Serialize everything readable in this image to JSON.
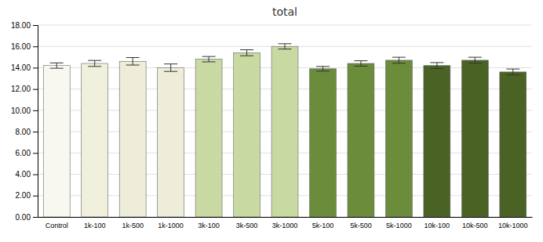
{
  "chart_data": {
    "type": "bar",
    "title": "total",
    "categories": [
      "Control",
      "1k-100",
      "1k-500",
      "1k-1000",
      "3k-100",
      "3k-500",
      "3k-1000",
      "5k-100",
      "5k-500",
      "5k-1000",
      "10k-100",
      "10k-500",
      "10k-1000"
    ],
    "values": [
      14.2,
      14.4,
      14.6,
      14.0,
      14.8,
      15.4,
      16.0,
      13.9,
      14.4,
      14.7,
      14.2,
      14.7,
      13.6
    ],
    "errors": [
      0.25,
      0.28,
      0.35,
      0.35,
      0.25,
      0.28,
      0.25,
      0.22,
      0.25,
      0.28,
      0.28,
      0.28,
      0.28
    ],
    "colors": [
      "#f8f8f0",
      "#f0f0dc",
      "#ededda",
      "#ededda",
      "#c9d9a2",
      "#c9d9a2",
      "#c9d9a2",
      "#6b8c3a",
      "#6b8c3a",
      "#6b8c3a",
      "#4a6325",
      "#4a6325",
      "#4a6325"
    ],
    "ylim": [
      0,
      18
    ],
    "yticks": [
      {
        "value": 0.0,
        "label": "0.00"
      },
      {
        "value": 2.0,
        "label": "2.00"
      },
      {
        "value": 4.0,
        "label": "4.00"
      },
      {
        "value": 6.0,
        "label": "6.00"
      },
      {
        "value": 8.0,
        "label": "8.00"
      },
      {
        "value": 10.0,
        "label": "10.00"
      },
      {
        "value": 12.0,
        "label": "12.00"
      },
      {
        "value": 14.0,
        "label": "14.00"
      },
      {
        "value": 16.0,
        "label": "16.00"
      },
      {
        "value": 18.0,
        "label": "18.00"
      }
    ],
    "grid": true
  }
}
